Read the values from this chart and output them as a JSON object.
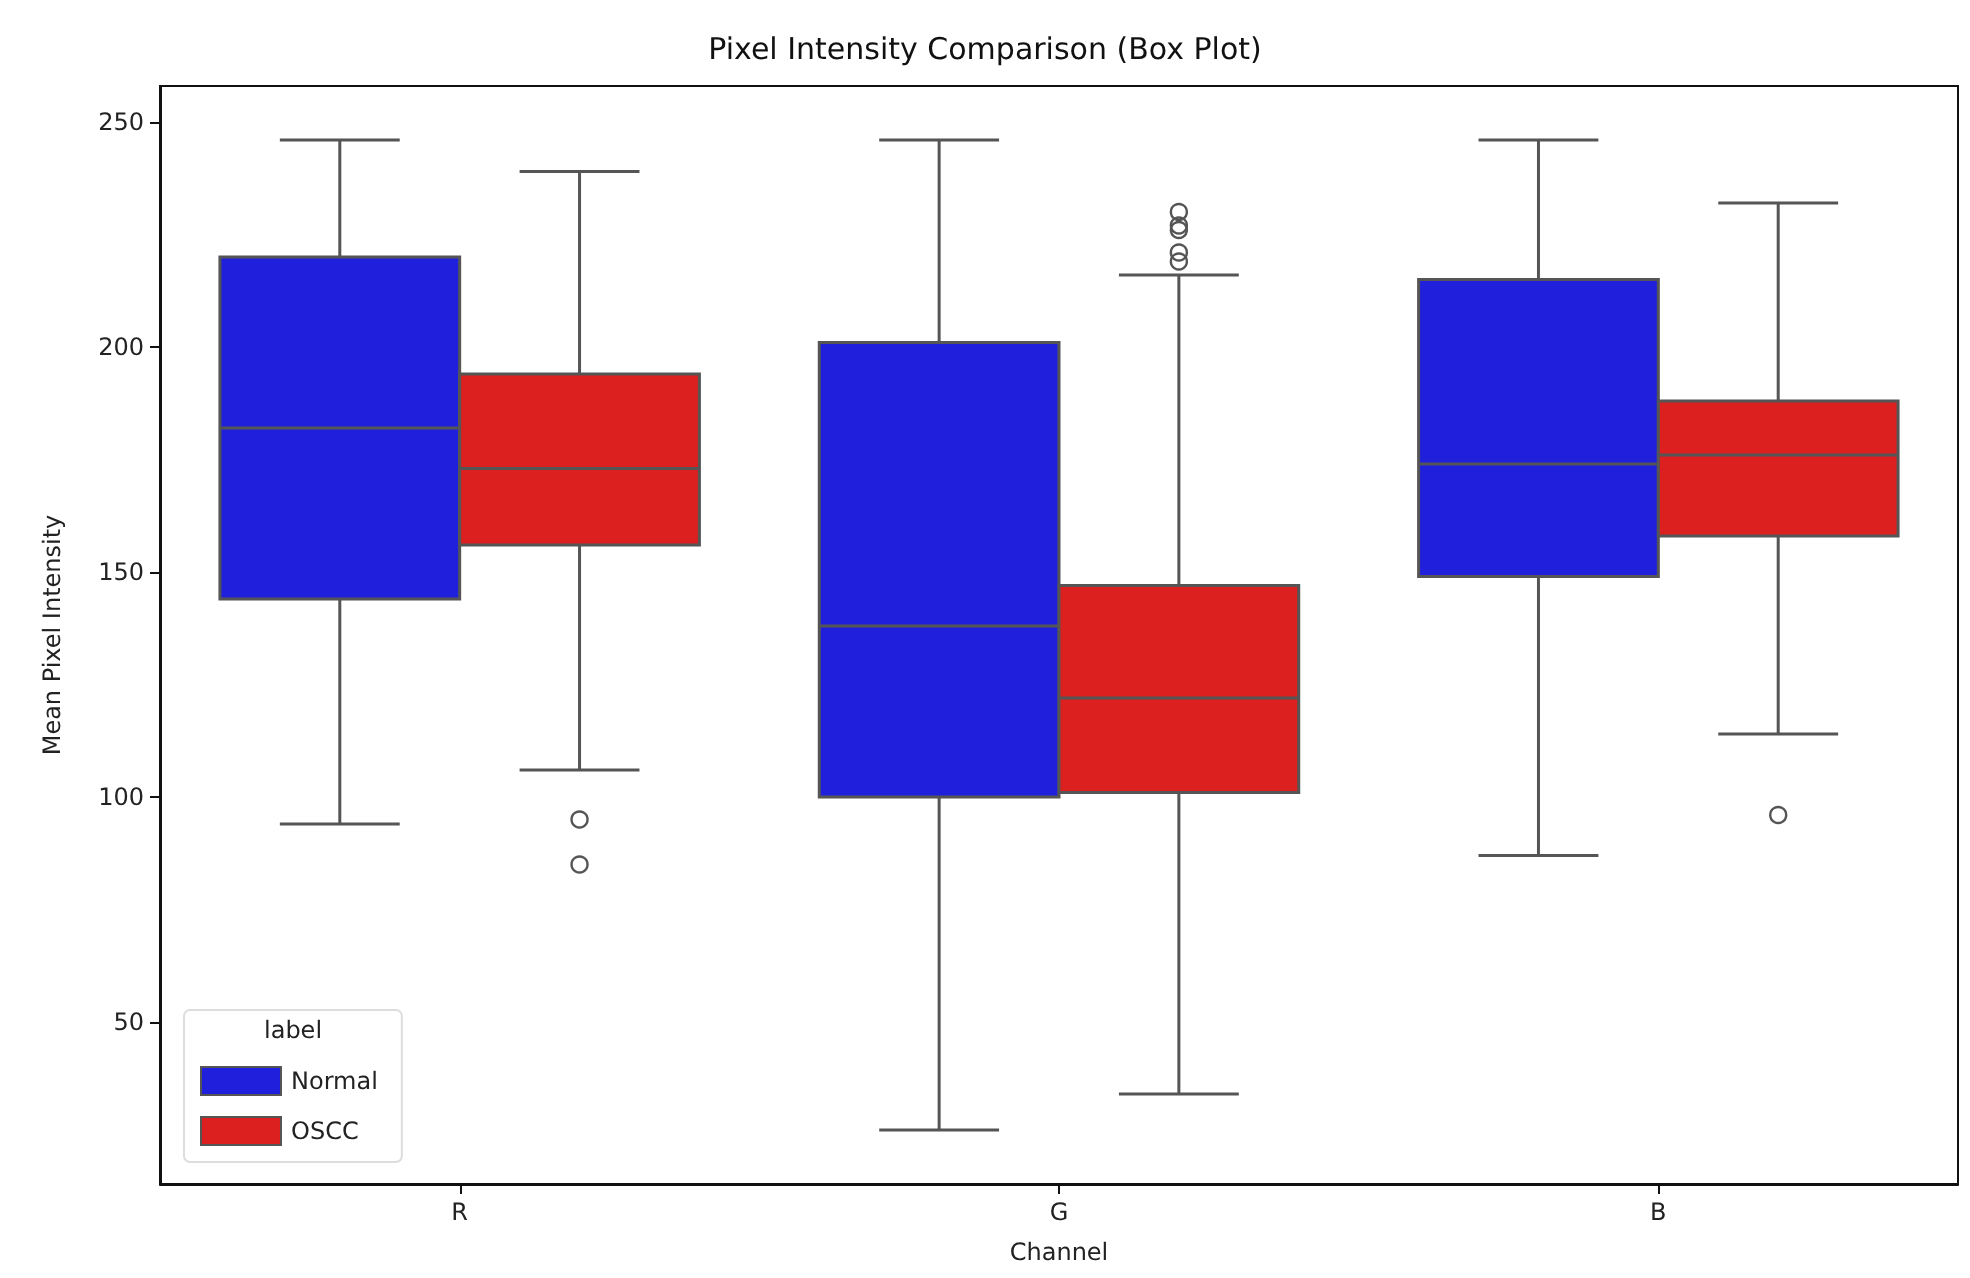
{
  "chart_data": {
    "type": "box",
    "title": "Pixel Intensity Comparison (Box Plot)",
    "xlabel": "Channel",
    "ylabel": "Mean Pixel Intensity",
    "legend_title": "label",
    "legend": "bottom left",
    "grid": false,
    "categories": [
      "R",
      "G",
      "B"
    ],
    "ylim": [
      14,
      258
    ],
    "yticks": [
      50,
      100,
      150,
      200,
      250
    ],
    "series": [
      {
        "name": "Normal",
        "color": "#2020dc",
        "boxes": [
          {
            "low": 94,
            "q1": 144,
            "median": 182,
            "q3": 220,
            "high": 246
          },
          {
            "low": 26,
            "q1": 100,
            "median": 138,
            "q3": 201,
            "high": 246
          },
          {
            "low": 87,
            "q1": 149,
            "median": 174,
            "q3": 215,
            "high": 246
          }
        ]
      },
      {
        "name": "OSCC",
        "color": "#dc2020",
        "boxes": [
          {
            "low": 106,
            "q1": 156,
            "median": 173,
            "q3": 194,
            "high": 239,
            "outliers": [
              95,
              85
            ]
          },
          {
            "low": 34,
            "q1": 101,
            "median": 122,
            "q3": 147,
            "high": 216,
            "outliers": [
              230,
              227,
              226,
              221,
              219
            ]
          },
          {
            "low": 114,
            "q1": 158,
            "median": 176,
            "q3": 188,
            "high": 232,
            "outliers": [
              96
            ]
          }
        ]
      }
    ]
  }
}
